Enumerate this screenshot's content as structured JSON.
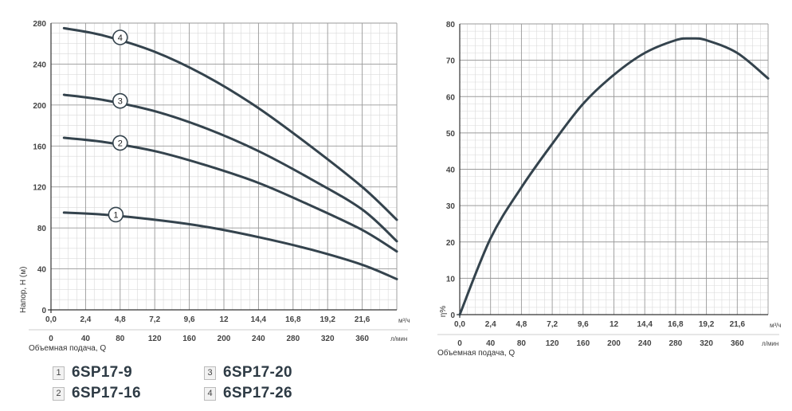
{
  "chart_data": [
    {
      "type": "line",
      "ylabel": "Напор, Н (м)",
      "xlabel": "Объемная подача, Q",
      "x_unit_top": "м³/ч",
      "x_unit_bottom": "л/мин",
      "x_ticks_m3h": [
        "0,0",
        "2,4",
        "4,8",
        "7,2",
        "9,6",
        "12",
        "14,4",
        "16,8",
        "19,2",
        "21,6"
      ],
      "x_ticks_lmin": [
        "0",
        "40",
        "80",
        "120",
        "160",
        "200",
        "240",
        "280",
        "320",
        "360"
      ],
      "xlim_lmin": [
        0,
        400
      ],
      "y_ticks": [
        "0",
        "40",
        "80",
        "120",
        "160",
        "200",
        "240",
        "280"
      ],
      "ylim": [
        0,
        280
      ],
      "grid": true,
      "series": [
        {
          "marker": "1",
          "x": [
            15,
            60,
            120,
            180,
            240,
            300,
            360,
            400
          ],
          "y": [
            95,
            93,
            88,
            81,
            71,
            59,
            44,
            30
          ]
        },
        {
          "marker": "2",
          "x": [
            15,
            60,
            120,
            180,
            240,
            300,
            360,
            400
          ],
          "y": [
            168,
            164,
            155,
            141,
            124,
            102,
            78,
            57
          ]
        },
        {
          "marker": "3",
          "x": [
            15,
            60,
            120,
            180,
            240,
            300,
            360,
            400
          ],
          "y": [
            210,
            205,
            194,
            177,
            155,
            128,
            98,
            67
          ]
        },
        {
          "marker": "4",
          "x": [
            15,
            60,
            120,
            180,
            240,
            300,
            360,
            400
          ],
          "y": [
            275,
            268,
            252,
            228,
            197,
            160,
            120,
            88
          ]
        }
      ],
      "markers_at_lmin": [
        [
          75,
          93
        ],
        [
          80,
          163
        ],
        [
          80,
          204
        ],
        [
          80,
          266
        ]
      ]
    },
    {
      "type": "line",
      "ylabel": "η%",
      "xlabel": "Объемная подача, Q",
      "x_unit_top": "м³/ч",
      "x_unit_bottom": "л/мин",
      "x_ticks_m3h": [
        "0,0",
        "2,4",
        "4,8",
        "7,2",
        "9,6",
        "12",
        "14,4",
        "16,8",
        "19,2",
        "21,6"
      ],
      "x_ticks_lmin": [
        "0",
        "40",
        "80",
        "120",
        "160",
        "200",
        "240",
        "280",
        "320",
        "360"
      ],
      "xlim_lmin": [
        0,
        400
      ],
      "y_ticks": [
        "0",
        "10",
        "20",
        "30",
        "40",
        "50",
        "60",
        "70",
        "80"
      ],
      "ylim": [
        0,
        80
      ],
      "grid": true,
      "series": [
        {
          "x": [
            0,
            40,
            80,
            120,
            160,
            200,
            240,
            280,
            300,
            320,
            360,
            400
          ],
          "y": [
            0,
            21,
            35,
            47,
            58,
            66,
            72,
            75.5,
            76,
            75.5,
            72,
            65
          ]
        }
      ]
    }
  ],
  "legend": [
    {
      "num": "1",
      "label": "6SP17-9"
    },
    {
      "num": "2",
      "label": "6SP17-16"
    },
    {
      "num": "3",
      "label": "6SP17-20"
    },
    {
      "num": "4",
      "label": "6SP17-26"
    }
  ]
}
